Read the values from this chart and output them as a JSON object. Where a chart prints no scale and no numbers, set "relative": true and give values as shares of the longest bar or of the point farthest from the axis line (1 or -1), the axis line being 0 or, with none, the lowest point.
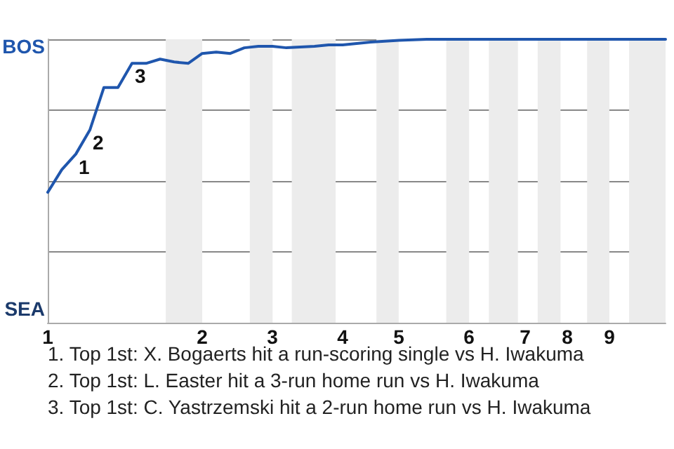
{
  "chart_data": {
    "type": "line",
    "relative": true,
    "categories": [
      "1",
      null,
      null,
      null,
      null,
      null,
      null,
      null,
      null,
      null,
      null,
      "2",
      null,
      null,
      null,
      null,
      "3",
      null,
      null,
      null,
      null,
      "4",
      null,
      null,
      null,
      "5",
      null,
      null,
      null,
      null,
      "6",
      null,
      null,
      null,
      "7",
      null,
      null,
      "8",
      null,
      null,
      "9",
      null,
      null,
      null,
      null
    ],
    "series": [
      {
        "color": "#1f56ad",
        "values": [
          0.46,
          0.54,
          0.595,
          0.68,
          0.83,
          0.83,
          0.915,
          0.915,
          0.93,
          0.92,
          0.915,
          0.95,
          0.955,
          0.95,
          0.97,
          0.975,
          0.975,
          0.97,
          0.973,
          0.975,
          0.98,
          0.98,
          0.985,
          0.99,
          0.993,
          0.996,
          0.998,
          1,
          1,
          1,
          1,
          1,
          1,
          1,
          1,
          1,
          1,
          1,
          1,
          1,
          1,
          1,
          1,
          1,
          1
        ],
        "line_style": "solid"
      }
    ],
    "grid": "y",
    "annotations": [
      "BOS",
      "SEA",
      "1",
      "2",
      "3",
      "1. Top 1st: X. Bogaerts hit a run-scoring single vs H. Iwakuma",
      "2. Top 1st: L. Easter hit a 3-run home run vs H. Iwakuma",
      "3. Top 1st: C. Yastrzemski hit a 2-run home run vs H. Iwakuma"
    ]
  }
}
